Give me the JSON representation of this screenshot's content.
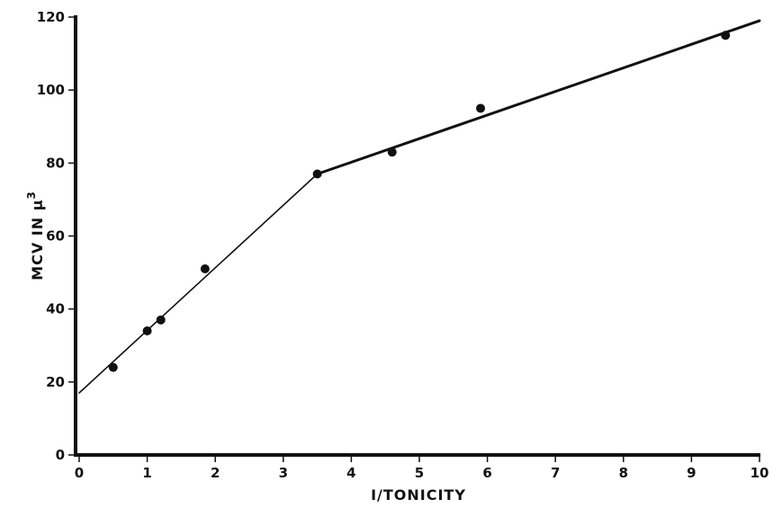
{
  "chart_data": {
    "type": "scatter",
    "xlabel": "I/TONICITY",
    "ylabel": "MCV IN μ",
    "ylabel_superscript": "3",
    "xlim": [
      0,
      10
    ],
    "ylim": [
      0,
      120
    ],
    "x_ticks": [
      "0",
      "1",
      "2",
      "3",
      "4",
      "5",
      "6",
      "7",
      "8",
      "9",
      "10"
    ],
    "y_ticks": [
      "0",
      "20",
      "40",
      "60",
      "80",
      "100",
      "120"
    ],
    "grid": false,
    "series": [
      {
        "points": [
          {
            "x": 0.5,
            "y": 24
          },
          {
            "x": 1.0,
            "y": 34
          },
          {
            "x": 1.2,
            "y": 37
          },
          {
            "x": 1.85,
            "y": 51
          },
          {
            "x": 3.5,
            "y": 77
          },
          {
            "x": 4.6,
            "y": 83
          },
          {
            "x": 5.9,
            "y": 95
          },
          {
            "x": 9.5,
            "y": 115
          }
        ]
      }
    ],
    "fit_lines": [
      {
        "points": [
          {
            "x": 0,
            "y": 17
          },
          {
            "x": 3.5,
            "y": 77
          }
        ]
      },
      {
        "points": [
          {
            "x": 3.5,
            "y": 77
          },
          {
            "x": 10,
            "y": 119
          }
        ]
      }
    ]
  }
}
